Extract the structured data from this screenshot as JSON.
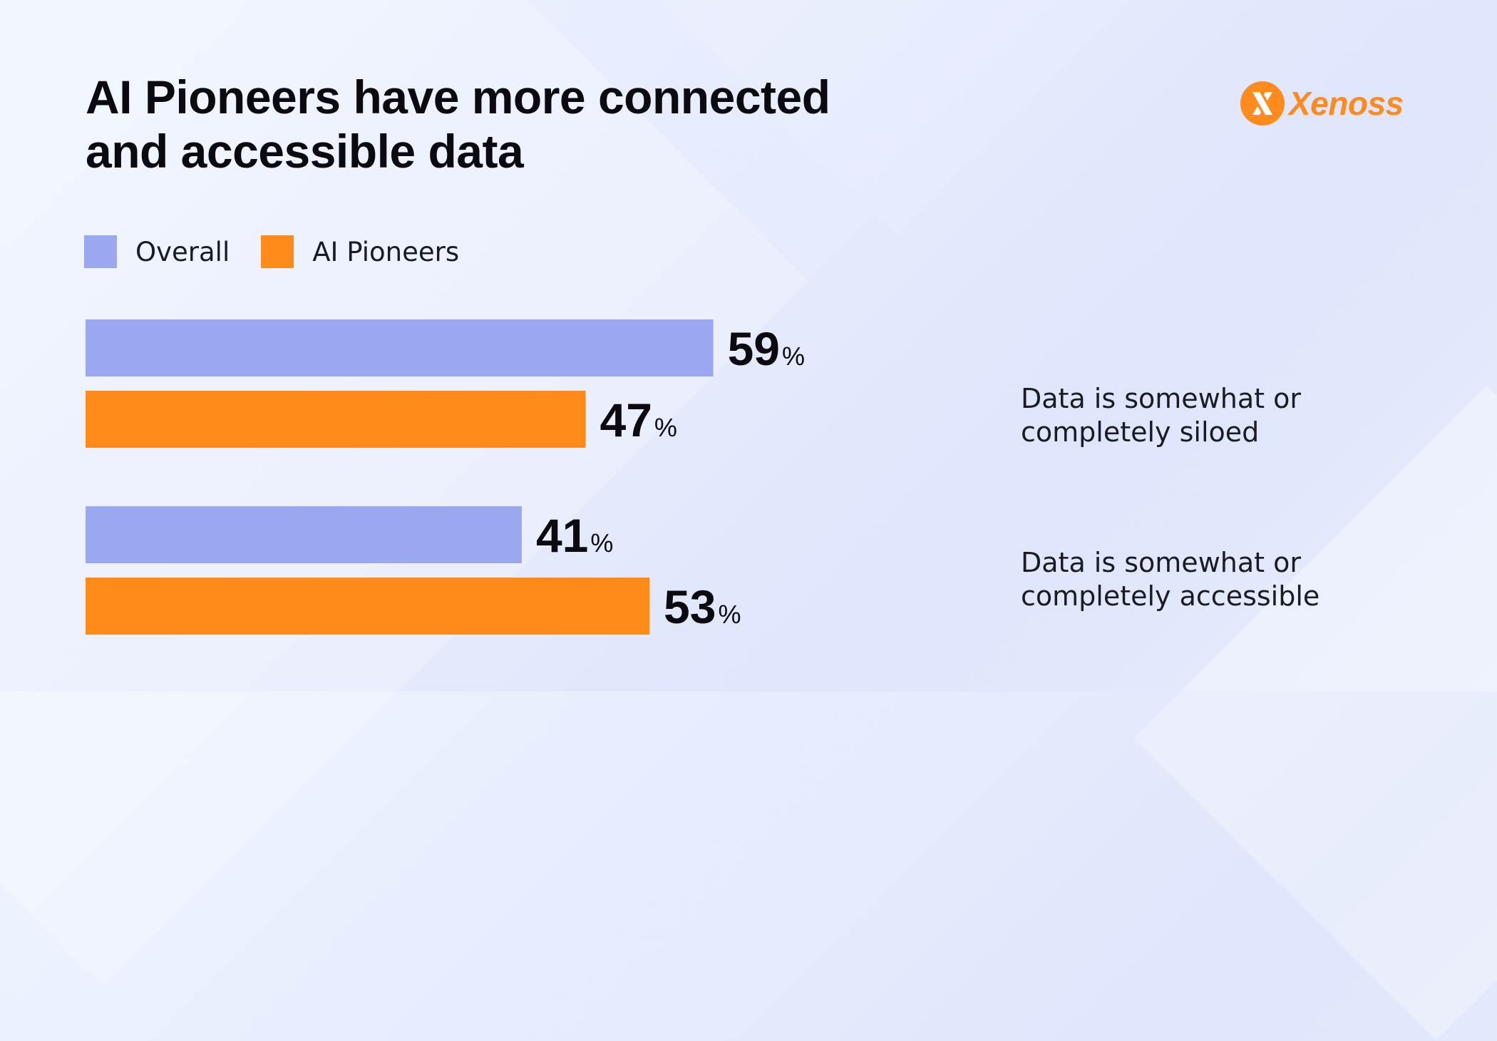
{
  "title_lines": [
    "AI Pioneers have more connected",
    "and accessible data"
  ],
  "logo": {
    "text": "Xenoss",
    "icon": "xenoss-logo-icon",
    "color": "#ff8a1e"
  },
  "chart_data": {
    "type": "bar",
    "orientation": "horizontal",
    "title": "AI Pioneers have more connected and accessible data",
    "unit": "%",
    "categories": [
      "Data is somewhat or completely siloed",
      "Data is somewhat or completely accessible"
    ],
    "category_lines": [
      [
        "Data is somewhat or",
        "completely siloed"
      ],
      [
        "Data is somewhat or",
        "completely accessible"
      ]
    ],
    "series": [
      {
        "name": "Overall",
        "values": [
          59,
          41
        ],
        "color": "#9aa8f0"
      },
      {
        "name": "AI Pioneers",
        "values": [
          47,
          53
        ],
        "color": "#ff8a1a"
      }
    ],
    "xlim": [
      0,
      100
    ],
    "grid": false,
    "legend_position": "top-left"
  }
}
